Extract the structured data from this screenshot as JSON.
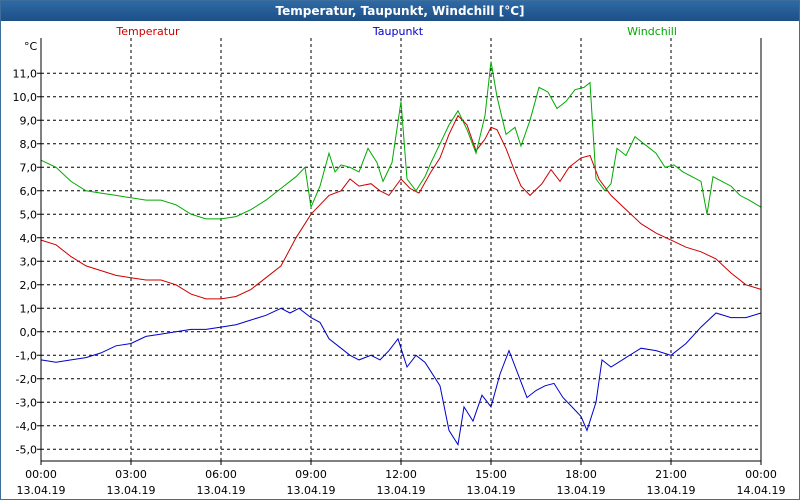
{
  "window": {
    "title": "Temperatur, Taupunkt, Windchill [°C]"
  },
  "colors": {
    "frame": "#1c4f86",
    "grid": "#000000",
    "text": "#000000"
  },
  "chart_data": {
    "type": "line",
    "unit_label": "°C",
    "ylim": [
      -5.5,
      12.5
    ],
    "y_ticks": [
      "-5,0",
      "-4,0",
      "-3,0",
      "-2,0",
      "-1,0",
      "0,0",
      "1,0",
      "2,0",
      "3,0",
      "4,0",
      "5,0",
      "6,0",
      "7,0",
      "8,0",
      "9,0",
      "10,0",
      "11,0"
    ],
    "x_ticks": [
      {
        "time": "00:00",
        "date": "13.04.19"
      },
      {
        "time": "03:00",
        "date": "13.04.19"
      },
      {
        "time": "06:00",
        "date": "13.04.19"
      },
      {
        "time": "09:00",
        "date": "13.04.19"
      },
      {
        "time": "12:00",
        "date": "13.04.19"
      },
      {
        "time": "15:00",
        "date": "13.04.19"
      },
      {
        "time": "18:00",
        "date": "13.04.19"
      },
      {
        "time": "21:00",
        "date": "13.04.19"
      },
      {
        "time": "00:00",
        "date": "14.04.19"
      }
    ],
    "grid": true,
    "series": [
      {
        "name": "Temperatur",
        "color": "#cc0000",
        "points": [
          [
            0,
            3.9
          ],
          [
            0.5,
            3.7
          ],
          [
            1,
            3.2
          ],
          [
            1.5,
            2.8
          ],
          [
            2,
            2.6
          ],
          [
            2.5,
            2.4
          ],
          [
            3,
            2.3
          ],
          [
            3.5,
            2.2
          ],
          [
            4,
            2.2
          ],
          [
            4.5,
            2.0
          ],
          [
            5,
            1.6
          ],
          [
            5.5,
            1.4
          ],
          [
            6,
            1.4
          ],
          [
            6.5,
            1.5
          ],
          [
            7,
            1.8
          ],
          [
            7.5,
            2.3
          ],
          [
            8,
            2.8
          ],
          [
            8.5,
            4.0
          ],
          [
            9,
            5.0
          ],
          [
            9.3,
            5.4
          ],
          [
            9.6,
            5.8
          ],
          [
            10,
            6.0
          ],
          [
            10.3,
            6.5
          ],
          [
            10.6,
            6.2
          ],
          [
            11,
            6.3
          ],
          [
            11.3,
            6.0
          ],
          [
            11.6,
            5.8
          ],
          [
            12,
            6.5
          ],
          [
            12.3,
            6.1
          ],
          [
            12.6,
            5.9
          ],
          [
            13,
            6.8
          ],
          [
            13.3,
            7.4
          ],
          [
            13.6,
            8.4
          ],
          [
            13.9,
            9.2
          ],
          [
            14.2,
            8.8
          ],
          [
            14.5,
            7.7
          ],
          [
            14.8,
            8.2
          ],
          [
            15,
            8.7
          ],
          [
            15.2,
            8.6
          ],
          [
            15.5,
            7.8
          ],
          [
            15.8,
            6.8
          ],
          [
            16,
            6.2
          ],
          [
            16.3,
            5.8
          ],
          [
            16.7,
            6.3
          ],
          [
            17,
            6.9
          ],
          [
            17.3,
            6.4
          ],
          [
            17.6,
            7.0
          ],
          [
            18,
            7.4
          ],
          [
            18.3,
            7.5
          ],
          [
            18.6,
            6.5
          ],
          [
            19,
            5.8
          ],
          [
            19.5,
            5.2
          ],
          [
            20,
            4.6
          ],
          [
            20.5,
            4.2
          ],
          [
            21,
            3.9
          ],
          [
            21.5,
            3.6
          ],
          [
            22,
            3.4
          ],
          [
            22.5,
            3.1
          ],
          [
            23,
            2.5
          ],
          [
            23.5,
            2.0
          ],
          [
            24,
            1.8
          ]
        ]
      },
      {
        "name": "Taupunkt",
        "color": "#0000cc",
        "points": [
          [
            0,
            -1.2
          ],
          [
            0.5,
            -1.3
          ],
          [
            1,
            -1.2
          ],
          [
            1.5,
            -1.1
          ],
          [
            2,
            -0.9
          ],
          [
            2.5,
            -0.6
          ],
          [
            3,
            -0.5
          ],
          [
            3.5,
            -0.2
          ],
          [
            4,
            -0.1
          ],
          [
            4.5,
            0.0
          ],
          [
            5,
            0.1
          ],
          [
            5.5,
            0.1
          ],
          [
            6,
            0.2
          ],
          [
            6.5,
            0.3
          ],
          [
            7,
            0.5
          ],
          [
            7.5,
            0.7
          ],
          [
            8,
            1.0
          ],
          [
            8.3,
            0.8
          ],
          [
            8.6,
            1.0
          ],
          [
            9,
            0.6
          ],
          [
            9.3,
            0.4
          ],
          [
            9.6,
            -0.3
          ],
          [
            10,
            -0.7
          ],
          [
            10.3,
            -1.0
          ],
          [
            10.6,
            -1.2
          ],
          [
            11,
            -1.0
          ],
          [
            11.3,
            -1.2
          ],
          [
            11.6,
            -0.8
          ],
          [
            11.9,
            -0.3
          ],
          [
            12.2,
            -1.5
          ],
          [
            12.5,
            -1.0
          ],
          [
            12.8,
            -1.3
          ],
          [
            13,
            -1.7
          ],
          [
            13.3,
            -2.3
          ],
          [
            13.6,
            -4.2
          ],
          [
            13.9,
            -4.8
          ],
          [
            14.1,
            -3.2
          ],
          [
            14.4,
            -3.8
          ],
          [
            14.7,
            -2.7
          ],
          [
            15,
            -3.2
          ],
          [
            15.3,
            -1.8
          ],
          [
            15.6,
            -0.8
          ],
          [
            15.9,
            -1.8
          ],
          [
            16.2,
            -2.8
          ],
          [
            16.5,
            -2.5
          ],
          [
            16.8,
            -2.3
          ],
          [
            17.1,
            -2.2
          ],
          [
            17.4,
            -2.8
          ],
          [
            17.7,
            -3.2
          ],
          [
            18,
            -3.6
          ],
          [
            18.2,
            -4.2
          ],
          [
            18.5,
            -3.0
          ],
          [
            18.7,
            -1.2
          ],
          [
            19,
            -1.5
          ],
          [
            19.5,
            -1.1
          ],
          [
            20,
            -0.7
          ],
          [
            20.5,
            -0.8
          ],
          [
            21,
            -1.0
          ],
          [
            21.5,
            -0.5
          ],
          [
            22,
            0.2
          ],
          [
            22.5,
            0.8
          ],
          [
            23,
            0.6
          ],
          [
            23.5,
            0.6
          ],
          [
            24,
            0.8
          ]
        ]
      },
      {
        "name": "Windchill",
        "color": "#00aa00",
        "points": [
          [
            0,
            7.3
          ],
          [
            0.5,
            7.0
          ],
          [
            1,
            6.4
          ],
          [
            1.5,
            6.0
          ],
          [
            2,
            5.9
          ],
          [
            2.5,
            5.8
          ],
          [
            3,
            5.7
          ],
          [
            3.5,
            5.6
          ],
          [
            4,
            5.6
          ],
          [
            4.5,
            5.4
          ],
          [
            5,
            5.0
          ],
          [
            5.5,
            4.8
          ],
          [
            6,
            4.8
          ],
          [
            6.5,
            4.9
          ],
          [
            7,
            5.2
          ],
          [
            7.5,
            5.6
          ],
          [
            8,
            6.1
          ],
          [
            8.5,
            6.6
          ],
          [
            8.8,
            7.0
          ],
          [
            9,
            5.3
          ],
          [
            9.3,
            6.2
          ],
          [
            9.6,
            7.6
          ],
          [
            9.8,
            6.8
          ],
          [
            10,
            7.1
          ],
          [
            10.3,
            7.0
          ],
          [
            10.6,
            6.8
          ],
          [
            10.9,
            7.8
          ],
          [
            11.2,
            7.2
          ],
          [
            11.4,
            6.4
          ],
          [
            11.7,
            7.2
          ],
          [
            12,
            9.8
          ],
          [
            12.2,
            6.5
          ],
          [
            12.5,
            6.0
          ],
          [
            12.8,
            6.6
          ],
          [
            13,
            7.2
          ],
          [
            13.3,
            8.0
          ],
          [
            13.6,
            8.8
          ],
          [
            13.9,
            9.4
          ],
          [
            14.2,
            8.6
          ],
          [
            14.5,
            7.6
          ],
          [
            14.8,
            9.2
          ],
          [
            15,
            11.5
          ],
          [
            15.2,
            10.0
          ],
          [
            15.5,
            8.4
          ],
          [
            15.8,
            8.7
          ],
          [
            16,
            7.9
          ],
          [
            16.3,
            9.0
          ],
          [
            16.6,
            10.4
          ],
          [
            16.9,
            10.2
          ],
          [
            17.2,
            9.5
          ],
          [
            17.5,
            9.8
          ],
          [
            17.8,
            10.3
          ],
          [
            18.1,
            10.4
          ],
          [
            18.3,
            10.6
          ],
          [
            18.5,
            6.5
          ],
          [
            18.8,
            6.0
          ],
          [
            19,
            6.3
          ],
          [
            19.2,
            7.8
          ],
          [
            19.5,
            7.5
          ],
          [
            19.8,
            8.3
          ],
          [
            20.1,
            8.0
          ],
          [
            20.5,
            7.6
          ],
          [
            20.8,
            7.0
          ],
          [
            21.1,
            7.1
          ],
          [
            21.4,
            6.8
          ],
          [
            21.7,
            6.6
          ],
          [
            22,
            6.4
          ],
          [
            22.2,
            5.0
          ],
          [
            22.4,
            6.6
          ],
          [
            22.7,
            6.4
          ],
          [
            23,
            6.2
          ],
          [
            23.3,
            5.8
          ],
          [
            23.6,
            5.6
          ],
          [
            24,
            5.3
          ]
        ]
      }
    ]
  }
}
